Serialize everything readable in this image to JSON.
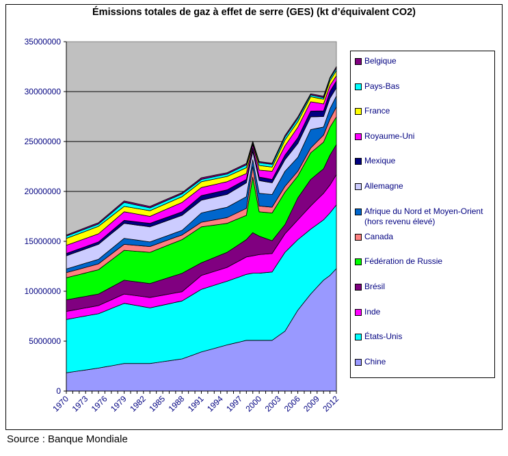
{
  "chart_data": {
    "type": "area",
    "stacked": true,
    "title": "Émissions totales de gaz à effet de serre (GES) (kt d’équivalent CO2)",
    "xlabel": "",
    "ylabel": "",
    "units": "kt d’équivalent CO2",
    "ylim": [
      0,
      35000000
    ],
    "yticks": [
      0,
      5000000,
      10000000,
      15000000,
      20000000,
      25000000,
      30000000,
      35000000
    ],
    "ytick_labels": [
      "0",
      "5000000",
      "10000000",
      "15000000",
      "20000000",
      "25000000",
      "30000000",
      "35000000"
    ],
    "gridlines": [
      20000000,
      25000000,
      30000000
    ],
    "grid": true,
    "legend_position": "right",
    "x": [
      1970,
      1971,
      1972,
      1973,
      1974,
      1975,
      1976,
      1977,
      1978,
      1979,
      1980,
      1981,
      1982,
      1983,
      1984,
      1985,
      1986,
      1987,
      1988,
      1989,
      1990,
      1991,
      1992,
      1993,
      1994,
      1995,
      1996,
      1997,
      1998,
      1999,
      2000,
      2001,
      2002,
      2003,
      2004,
      2005,
      2006,
      2007,
      2008,
      2009,
      2010,
      2011,
      2012
    ],
    "xtick_labels": [
      "1970",
      "1973",
      "1976",
      "1979",
      "1982",
      "1985",
      "1988",
      "1991",
      "1994",
      "1997",
      "2000",
      "2003",
      "2006",
      "2009",
      "2012"
    ],
    "plot_background": "#c0c0c0",
    "series": [
      {
        "name": "Chine",
        "color": "#9999ff",
        "values": [
          1830000,
          1924000,
          2018000,
          2112000,
          2206000,
          2300000,
          2415000,
          2530000,
          2645000,
          2760000,
          2760000,
          2760000,
          2760000,
          2760000,
          2852000,
          2944000,
          3036000,
          3128000,
          3220000,
          3453000,
          3687000,
          3920000,
          4095000,
          4270000,
          4445000,
          4620000,
          4773000,
          4927000,
          5080000,
          5080000,
          5080000,
          5080000,
          5080000,
          5540000,
          6000000,
          7050000,
          8100000,
          8910000,
          9720000,
          10415000,
          11110000,
          11580000,
          12270000
        ]
      },
      {
        "name": "États-Unis",
        "color": "#00ffff",
        "values": [
          5340000,
          5362000,
          5384000,
          5406000,
          5428000,
          5450000,
          5595000,
          5740000,
          5885000,
          6030000,
          5915000,
          5800000,
          5685000,
          5570000,
          5618000,
          5666000,
          5714000,
          5762000,
          5810000,
          5963000,
          6117000,
          6270000,
          6298000,
          6325000,
          6353000,
          6380000,
          6457000,
          6533000,
          6610000,
          6730000,
          6730000,
          6790000,
          6850000,
          7375000,
          7900000,
          7485000,
          7070000,
          6785000,
          6500000,
          6270000,
          6040000,
          6260000,
          6380000
        ]
      },
      {
        "name": "Inde",
        "color": "#ff00ff",
        "values": [
          810000,
          810000,
          810000,
          810000,
          810000,
          810000,
          840000,
          870000,
          900000,
          930000,
          958000,
          985000,
          1013000,
          1040000,
          1016000,
          992000,
          968000,
          944000,
          920000,
          1077000,
          1233000,
          1390000,
          1390000,
          1390000,
          1390000,
          1390000,
          1507000,
          1623000,
          1740000,
          1740000,
          1860000,
          1855000,
          1850000,
          1850000,
          1850000,
          1915000,
          1980000,
          2150000,
          2320000,
          2490000,
          2660000,
          2790000,
          3020000
        ]
      },
      {
        "name": "Brésil",
        "color": "#800080",
        "values": [
          1160000,
          1160000,
          1160000,
          1160000,
          1160000,
          1160000,
          1215000,
          1270000,
          1325000,
          1380000,
          1385000,
          1390000,
          1395000,
          1400000,
          1490000,
          1580000,
          1670000,
          1760000,
          1850000,
          1657000,
          1463000,
          1270000,
          1330000,
          1390000,
          1450000,
          1510000,
          1587000,
          1663000,
          1740000,
          2320000,
          1850000,
          1565000,
          1280000,
          1105000,
          930000,
          1565000,
          2200000,
          2430000,
          2660000,
          2560000,
          2460000,
          3010000,
          3020000
        ]
      },
      {
        "name": "Fédération de Russie",
        "color": "#00ff00",
        "values": [
          2210000,
          2256000,
          2302000,
          2348000,
          2394000,
          2440000,
          2580000,
          2720000,
          2860000,
          3000000,
          3033000,
          3065000,
          3098000,
          3130000,
          3178000,
          3226000,
          3274000,
          3322000,
          3370000,
          3447000,
          3523000,
          3600000,
          3425000,
          3250000,
          3075000,
          2900000,
          2743000,
          2587000,
          2430000,
          5570000,
          2440000,
          2610000,
          2780000,
          3015000,
          3250000,
          2725000,
          2200000,
          2435000,
          2670000,
          2670000,
          2670000,
          2790000,
          2780000
        ]
      },
      {
        "name": "Canada",
        "color": "#ff8080",
        "values": [
          510000,
          524000,
          538000,
          552000,
          566000,
          580000,
          585000,
          590000,
          595000,
          600000,
          595000,
          590000,
          585000,
          580000,
          558000,
          536000,
          514000,
          492000,
          470000,
          467000,
          463000,
          460000,
          490000,
          520000,
          550000,
          580000,
          620000,
          660000,
          700000,
          1040000,
          580000,
          580000,
          580000,
          580000,
          580000,
          525000,
          470000,
          470000,
          470000,
          585000,
          700000,
          810000,
          1000000
        ]
      },
      {
        "name": "Afrique du Nord et Moyen-Orient (hors revenu élevé)",
        "color": "#0066cc",
        "values": [
          370000,
          388000,
          406000,
          424000,
          442000,
          460000,
          495000,
          530000,
          565000,
          600000,
          565000,
          530000,
          495000,
          460000,
          460000,
          460000,
          460000,
          460000,
          460000,
          617000,
          773000,
          930000,
          958000,
          985000,
          1013000,
          1040000,
          1083000,
          1127000,
          1170000,
          700000,
          1270000,
          1275000,
          1280000,
          1395000,
          1510000,
          1450000,
          1390000,
          1625000,
          1860000,
          1335000,
          810000,
          1040000,
          1090000
        ]
      },
      {
        "name": "Allemagne",
        "color": "#ccccff",
        "values": [
          1320000,
          1356000,
          1392000,
          1428000,
          1464000,
          1500000,
          1500000,
          1500000,
          1500000,
          1500000,
          1503000,
          1505000,
          1508000,
          1510000,
          1508000,
          1506000,
          1504000,
          1502000,
          1500000,
          1427000,
          1353000,
          1280000,
          1280000,
          1280000,
          1280000,
          1280000,
          1317000,
          1353000,
          1390000,
          810000,
          1280000,
          1220000,
          1160000,
          1160000,
          1160000,
          1275000,
          1390000,
          1330000,
          1270000,
          1160000,
          1050000,
          1050000,
          810000
        ]
      },
      {
        "name": "Mexique",
        "color": "#000080",
        "values": [
          230000,
          232000,
          234000,
          236000,
          238000,
          240000,
          255000,
          270000,
          285000,
          300000,
          313000,
          325000,
          338000,
          350000,
          352000,
          354000,
          356000,
          358000,
          360000,
          393000,
          427000,
          460000,
          460000,
          460000,
          460000,
          460000,
          420000,
          380000,
          340000,
          350000,
          350000,
          345000,
          340000,
          400000,
          460000,
          520000,
          580000,
          580000,
          580000,
          575000,
          570000,
          690000,
          700000
        ]
      },
      {
        "name": "Royaume-Uni",
        "color": "#ff00ff",
        "values": [
          820000,
          818000,
          816000,
          814000,
          812000,
          810000,
          823000,
          835000,
          848000,
          860000,
          820000,
          780000,
          740000,
          700000,
          748000,
          796000,
          844000,
          892000,
          940000,
          897000,
          853000,
          810000,
          810000,
          810000,
          810000,
          810000,
          737000,
          663000,
          590000,
          350000,
          690000,
          755000,
          820000,
          875000,
          930000,
          990000,
          1050000,
          990000,
          930000,
          815000,
          700000,
          580000,
          510000
        ]
      },
      {
        "name": "France",
        "color": "#ffff00",
        "values": [
          690000,
          702000,
          714000,
          726000,
          738000,
          750000,
          698000,
          645000,
          593000,
          540000,
          548000,
          555000,
          563000,
          570000,
          570000,
          570000,
          570000,
          570000,
          570000,
          573000,
          577000,
          580000,
          568000,
          555000,
          543000,
          530000,
          547000,
          563000,
          580000,
          160000,
          470000,
          445000,
          420000,
          500000,
          580000,
          575000,
          570000,
          540000,
          510000,
          490000,
          470000,
          470000,
          530000
        ]
      },
      {
        "name": "Pays-Bas",
        "color": "#00ffff",
        "values": [
          230000,
          230000,
          230000,
          230000,
          230000,
          230000,
          273000,
          315000,
          358000,
          400000,
          370000,
          340000,
          310000,
          280000,
          280000,
          280000,
          280000,
          280000,
          280000,
          263000,
          247000,
          230000,
          233000,
          235000,
          238000,
          240000,
          253000,
          267000,
          280000,
          120000,
          280000,
          275000,
          270000,
          275000,
          280000,
          290000,
          300000,
          240000,
          180000,
          170000,
          160000,
          230000,
          230000
        ]
      },
      {
        "name": "Belgique",
        "color": "#800080",
        "values": [
          120000,
          124000,
          128000,
          132000,
          136000,
          140000,
          143000,
          145000,
          148000,
          150000,
          150000,
          150000,
          150000,
          150000,
          146000,
          142000,
          138000,
          134000,
          130000,
          143000,
          157000,
          170000,
          163000,
          155000,
          148000,
          140000,
          143000,
          147000,
          150000,
          60000,
          110000,
          115000,
          120000,
          150000,
          180000,
          175000,
          170000,
          145000,
          120000,
          130000,
          140000,
          120000,
          160000
        ]
      }
    ],
    "legend_order": [
      "Belgique",
      "Pays-Bas",
      "France",
      "Royaume-Uni",
      "Mexique",
      "Allemagne",
      "Afrique du Nord et Moyen-Orient (hors revenu élevé)",
      "Canada",
      "Fédération de Russie",
      "Brésil",
      "Inde",
      "États-Unis",
      "Chine"
    ]
  },
  "legend": {
    "items": [
      {
        "label": "Belgique",
        "color": "#800080"
      },
      {
        "label": "Pays-Bas",
        "color": "#00ffff"
      },
      {
        "label": "France",
        "color": "#ffff00"
      },
      {
        "label": "Royaume-Uni",
        "color": "#ff00ff"
      },
      {
        "label": "Mexique",
        "color": "#000080"
      },
      {
        "label": "Allemagne",
        "color": "#ccccff"
      },
      {
        "label": "Afrique du Nord et Moyen-Orient",
        "label2": "(hors revenu élevé)",
        "color": "#0066cc"
      },
      {
        "label": "Canada",
        "color": "#ff8080"
      },
      {
        "label": "Fédération de Russie",
        "color": "#00ff00"
      },
      {
        "label": "Brésil",
        "color": "#800080"
      },
      {
        "label": "Inde",
        "color": "#ff00ff"
      },
      {
        "label": "États-Unis",
        "color": "#00ffff"
      },
      {
        "label": "Chine",
        "color": "#9999ff"
      }
    ]
  },
  "footer": {
    "source": "Source : Banque Mondiale"
  }
}
